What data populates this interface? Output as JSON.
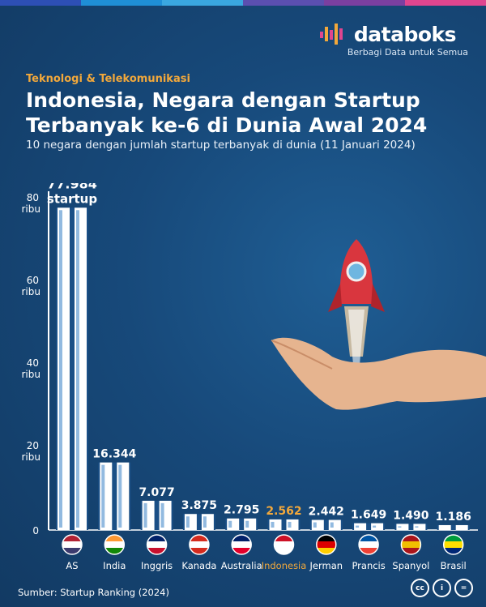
{
  "brand": {
    "name": "databoks",
    "tagline": "Berbagi Data untuk Semua",
    "accent_colors": [
      "#2d4fb5",
      "#1f8fd6",
      "#f2a83b",
      "#7b3fa0",
      "#e0458f"
    ]
  },
  "header": {
    "category": "Teknologi & Telekomunikasi",
    "title": "Indonesia, Negara dengan Startup Terbanyak ke-6 di Dunia Awal 2024",
    "subtitle": "10 negara dengan jumlah startup terbanyak di dunia (11 Januari 2024)"
  },
  "footer": {
    "source": "Sumber: Startup Ranking (2024)",
    "license_icons": [
      "cc-icon",
      "by-icon",
      "nd-icon"
    ]
  },
  "chart_data": {
    "type": "bar",
    "title": "10 negara dengan jumlah startup terbanyak di dunia (11 Januari 2024)",
    "categories": [
      "AS",
      "India",
      "Inggris",
      "Kanada",
      "Australia",
      "Indonesia",
      "Jerman",
      "Prancis",
      "Spanyol",
      "Brasil"
    ],
    "values": [
      77984,
      16344,
      7077,
      3875,
      2795,
      2562,
      2442,
      1649,
      1490,
      1186
    ],
    "value_labels": [
      "77.984",
      "16.344",
      "7.077",
      "3.875",
      "2.795",
      "2.562",
      "2.442",
      "1.649",
      "1.490",
      "1.186"
    ],
    "first_value_unit": "startup",
    "ylim": [
      0,
      80000
    ],
    "yticks": [
      {
        "value": 80000,
        "line1": "80",
        "line2": "ribu"
      },
      {
        "value": 60000,
        "line1": "60",
        "line2": "ribu"
      },
      {
        "value": 40000,
        "line1": "40",
        "line2": "ribu"
      },
      {
        "value": 20000,
        "line1": "20",
        "line2": "ribu"
      },
      {
        "value": 0,
        "line1": "0",
        "line2": ""
      }
    ],
    "highlight": "Indonesia",
    "highlight_color": "#f2a83b",
    "bar_color": "#ffffff",
    "flags": [
      "flag-us-icon",
      "flag-india-icon",
      "flag-uk-icon",
      "flag-canada-icon",
      "flag-australia-icon",
      "flag-indonesia-icon",
      "flag-germany-icon",
      "flag-france-icon",
      "flag-spain-icon",
      "flag-brazil-icon"
    ],
    "grid": false,
    "legend": "none"
  }
}
